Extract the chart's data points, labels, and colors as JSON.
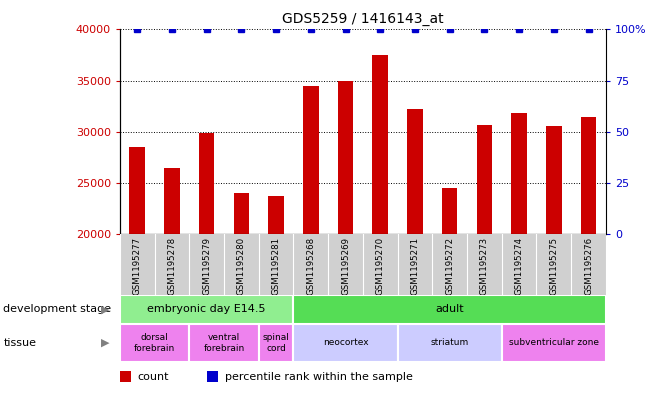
{
  "title": "GDS5259 / 1416143_at",
  "samples": [
    "GSM1195277",
    "GSM1195278",
    "GSM1195279",
    "GSM1195280",
    "GSM1195281",
    "GSM1195268",
    "GSM1195269",
    "GSM1195270",
    "GSM1195271",
    "GSM1195272",
    "GSM1195273",
    "GSM1195274",
    "GSM1195275",
    "GSM1195276"
  ],
  "counts": [
    28500,
    26400,
    29900,
    24000,
    23700,
    34500,
    35000,
    37500,
    32200,
    24500,
    30700,
    31800,
    30600,
    31400
  ],
  "bar_color": "#cc0000",
  "percentile_color": "#0000cc",
  "ylim_left": [
    20000,
    40000
  ],
  "ylim_right": [
    0,
    100
  ],
  "yticks_left": [
    20000,
    25000,
    30000,
    35000,
    40000
  ],
  "ytick_labels_left": [
    "20000",
    "25000",
    "30000",
    "35000",
    "40000"
  ],
  "yticks_right": [
    0,
    25,
    50,
    75,
    100
  ],
  "ytick_labels_right": [
    "0",
    "25",
    "50",
    "75",
    "100%"
  ],
  "dev_stage_groups": [
    {
      "label": "embryonic day E14.5",
      "start": 0,
      "end": 4,
      "color": "#90ee90"
    },
    {
      "label": "adult",
      "start": 5,
      "end": 13,
      "color": "#55dd55"
    }
  ],
  "tissue_groups": [
    {
      "label": "dorsal\nforebrain",
      "start": 0,
      "end": 1,
      "color": "#ee82ee"
    },
    {
      "label": "ventral\nforebrain",
      "start": 2,
      "end": 3,
      "color": "#ee82ee"
    },
    {
      "label": "spinal\ncord",
      "start": 4,
      "end": 4,
      "color": "#ee82ee"
    },
    {
      "label": "neocortex",
      "start": 5,
      "end": 7,
      "color": "#ccccff"
    },
    {
      "label": "striatum",
      "start": 8,
      "end": 10,
      "color": "#ccccff"
    },
    {
      "label": "subventricular zone",
      "start": 11,
      "end": 13,
      "color": "#ee82ee"
    }
  ],
  "xtick_bg_color": "#d0d0d0",
  "background_color": "#ffffff",
  "title_fontsize": 10,
  "tick_fontsize": 8,
  "annot_fontsize": 8,
  "label_fontsize": 8
}
